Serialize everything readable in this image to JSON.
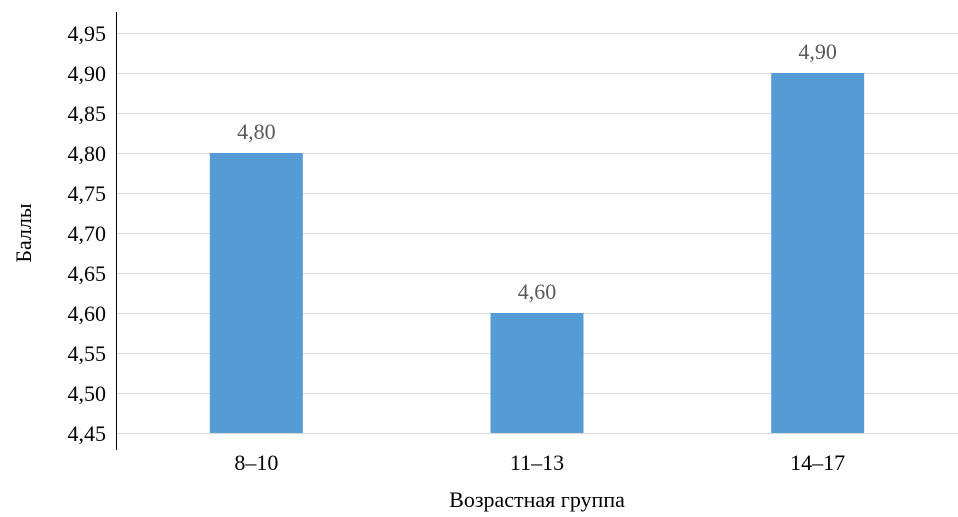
{
  "chart_data": {
    "type": "bar",
    "title": "",
    "xlabel": "Возрастная группа",
    "ylabel": "Баллы",
    "categories": [
      "8–10",
      "11–13",
      "14–17"
    ],
    "values": [
      4.8,
      4.6,
      4.9
    ],
    "data_labels": [
      "4,80",
      "4,60",
      "4,90"
    ],
    "ylim": [
      4.45,
      4.95
    ],
    "yticks": [
      4.45,
      4.5,
      4.55,
      4.6,
      4.65,
      4.7,
      4.75,
      4.8,
      4.85,
      4.9,
      4.95
    ],
    "ytick_labels": [
      "4,45",
      "4,50",
      "4,55",
      "4,60",
      "4,65",
      "4,70",
      "4,75",
      "4,80",
      "4,85",
      "4,90",
      "4,95"
    ],
    "grid": true,
    "legend": "none",
    "colors": {
      "bar": "#559bd5",
      "grid": "#d9d9d9",
      "axis": "#000000",
      "data_label": "#595959"
    }
  }
}
